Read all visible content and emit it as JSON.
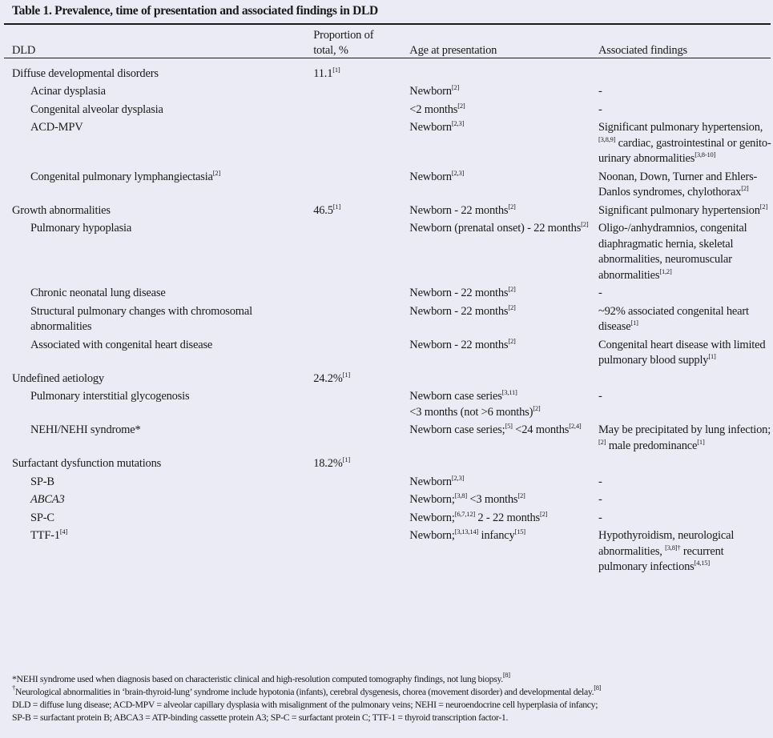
{
  "title": "Table 1. Prevalence, time of presentation and associated findings in DLD",
  "headers": [
    [
      [
        "DLD"
      ]
    ],
    [
      [
        "Proportion of"
      ],
      [
        "\ntotal, %"
      ]
    ],
    [
      [
        "Age at presentation"
      ]
    ],
    [
      [
        "Associated findings"
      ]
    ]
  ],
  "rows": [
    {
      "sub": false,
      "cells": [
        [
          [
            "Diffuse developmental disorders"
          ]
        ],
        [
          [
            "11.1",
            "[1]"
          ]
        ],
        [],
        []
      ]
    },
    {
      "sub": true,
      "cells": [
        [
          [
            "Acinar dysplasia"
          ]
        ],
        [],
        [
          [
            "Newborn",
            "[2]"
          ]
        ],
        [
          [
            "-"
          ]
        ]
      ]
    },
    {
      "sub": true,
      "cells": [
        [
          [
            "Congenital alveolar dysplasia"
          ]
        ],
        [],
        [
          [
            "<2 months",
            "[2]"
          ]
        ],
        [
          [
            "-"
          ]
        ]
      ]
    },
    {
      "sub": true,
      "cells": [
        [
          [
            "ACD-MPV"
          ]
        ],
        [],
        [
          [
            "Newborn",
            "[2,3]"
          ]
        ],
        [
          [
            "Significant pulmonary hypertension,",
            "[3,8,9]"
          ],
          [
            " cardiac, gastrointestinal or genito-urinary abnormalities",
            "[3,8-10]"
          ]
        ]
      ]
    },
    {
      "sub": true,
      "cells": [
        [
          [
            "Congenital pulmonary lymphangiectasia",
            "[2]"
          ]
        ],
        [],
        [
          [
            "Newborn",
            "[2,3]"
          ]
        ],
        [
          [
            "Noonan, Down, Turner and Ehlers-Danlos syndromes, chylothorax",
            "[2]"
          ]
        ]
      ]
    },
    {
      "sub": false,
      "cells": [
        [
          [
            "Growth abnormalities"
          ]
        ],
        [
          [
            "46.5",
            "[1]"
          ]
        ],
        [
          [
            "Newborn - 22 months",
            "[2]"
          ]
        ],
        [
          [
            "Significant pulmonary hypertension",
            "[2]"
          ]
        ]
      ]
    },
    {
      "sub": true,
      "cells": [
        [
          [
            "Pulmonary hypoplasia"
          ]
        ],
        [],
        [
          [
            "Newborn (prenatal onset) - 22 months",
            "[2]"
          ]
        ],
        [
          [
            "Oligo-/anhydramnios, congenital diaphragmatic hernia, skeletal abnormalities, neuromuscular abnormalities",
            "[1,2]"
          ]
        ]
      ]
    },
    {
      "sub": true,
      "cells": [
        [
          [
            "Chronic neonatal lung  disease"
          ]
        ],
        [],
        [
          [
            "Newborn - 22 months",
            "[2]"
          ]
        ],
        [
          [
            "-"
          ]
        ]
      ]
    },
    {
      "sub": true,
      "cells": [
        [
          [
            "Structural pulmonary  changes with chromosomal abnormalities"
          ]
        ],
        [],
        [
          [
            "Newborn - 22 months",
            "[2]"
          ]
        ],
        [
          [
            "~92% associated congenital heart disease",
            "[1]"
          ]
        ]
      ]
    },
    {
      "sub": true,
      "cells": [
        [
          [
            "Associated with congenital heart disease"
          ]
        ],
        [],
        [
          [
            "Newborn - 22 months",
            "[2]"
          ]
        ],
        [
          [
            "Congenital heart disease with limited pulmonary blood supply",
            "[1]"
          ]
        ]
      ]
    },
    {
      "sub": false,
      "cells": [
        [
          [
            "Undefined aetiology"
          ]
        ],
        [
          [
            "24.2%",
            "[1]"
          ]
        ],
        [],
        []
      ]
    },
    {
      "sub": true,
      "cells": [
        [
          [
            "Pulmonary interstitial glycogenosis"
          ]
        ],
        [],
        [
          [
            "Newborn case series",
            "[3,11]"
          ],
          [
            "\n<3 months (not >6 months)",
            "[2]"
          ]
        ],
        [
          [
            "-"
          ]
        ]
      ]
    },
    {
      "sub": true,
      "cells": [
        [
          [
            "NEHI/NEHI syndrome*"
          ]
        ],
        [],
        [
          [
            "Newborn case series;",
            "[5]"
          ],
          [
            " <24 months",
            "[2,4]"
          ]
        ],
        [
          [
            "May be precipitated by lung infection;",
            "[2]"
          ],
          [
            " male predominance",
            "[1]"
          ]
        ]
      ]
    },
    {
      "sub": false,
      "cells": [
        [
          [
            "Surfactant dysfunction mutations"
          ]
        ],
        [
          [
            "18.2%",
            "[1]"
          ]
        ],
        [],
        []
      ]
    },
    {
      "sub": true,
      "cells": [
        [
          [
            "SP-B"
          ]
        ],
        [],
        [
          [
            "Newborn",
            "[2,3]"
          ]
        ],
        [
          [
            "-"
          ]
        ]
      ]
    },
    {
      "sub": true,
      "italic": true,
      "cells": [
        [
          [
            "ABCA3"
          ]
        ],
        [],
        [
          [
            "Newborn;",
            "[3,8]"
          ],
          [
            " <3 months",
            "[2]"
          ]
        ],
        [
          [
            "-"
          ]
        ]
      ]
    },
    {
      "sub": true,
      "cells": [
        [
          [
            "SP-C"
          ]
        ],
        [],
        [
          [
            "Newborn;",
            "[6,7,12]"
          ],
          [
            "  2 - 22 months",
            "[2]"
          ]
        ],
        [
          [
            "-"
          ]
        ]
      ]
    },
    {
      "sub": true,
      "cells": [
        [
          [
            "TTF-1",
            "[4]"
          ]
        ],
        [],
        [
          [
            "Newborn;",
            "[3,13,14]"
          ],
          [
            " infancy",
            "[15]"
          ]
        ],
        [
          [
            "Hypothyroidism, neurological abnormalities, ",
            "[3,8]†"
          ],
          [
            " recurrent pulmonary infections",
            "[4,15]"
          ]
        ]
      ]
    }
  ],
  "footnotes": [
    [
      [
        "*NEHI syndrome used when diagnosis based on characteristic clinical and  high-resolution computed tomography findings, not lung biopsy.",
        "[8]"
      ]
    ],
    [
      [
        "",
        "†"
      ],
      [
        "Neurological abnormalities in ‘brain-thyroid-lung’ syndrome include hypotonia (infants), cerebral dysgenesis, chorea (movement disorder) and developmental delay.",
        "[8]"
      ]
    ],
    [
      [
        "DLD = diffuse lung disease; ACD-MPV = alveolar capillary dysplasia with misalignment of the pulmonary veins; NEHI = neuroendocrine cell hyperplasia of infancy;"
      ]
    ],
    [
      [
        "SP-B = surfactant protein B; ABCA3 = ATP-binding cassette protein A3; SP-C = surfactant protein C; TTF-1 = thyroid transcription factor-1."
      ]
    ]
  ]
}
